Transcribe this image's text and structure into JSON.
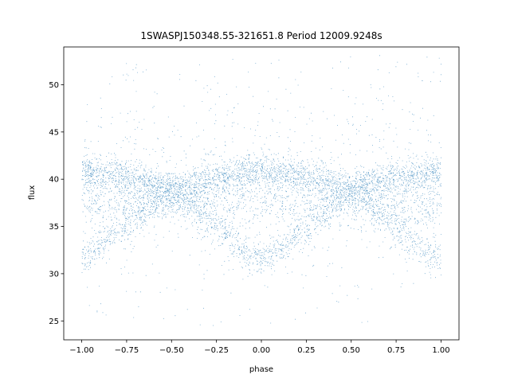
{
  "chart_data": {
    "type": "scatter",
    "title": "1SWASPJ150348.55-321651.8 Period 12009.9248s",
    "xlabel": "phase",
    "ylabel": "flux",
    "xlim": [
      -1.1,
      1.1
    ],
    "ylim": [
      23.0,
      54.0
    ],
    "x_ticks": [
      -1.0,
      -0.75,
      -0.5,
      -0.25,
      0.0,
      0.25,
      0.5,
      0.75,
      1.0
    ],
    "x_tick_labels": [
      "−1.00",
      "−0.75",
      "−0.50",
      "−0.25",
      "0.00",
      "0.25",
      "0.50",
      "0.75",
      "1.00"
    ],
    "y_ticks": [
      25,
      30,
      35,
      40,
      45,
      50
    ],
    "y_tick_labels": [
      "25",
      "30",
      "35",
      "40",
      "45",
      "50"
    ],
    "grid": false,
    "marker_color": "#1f77b4",
    "series": [
      {
        "upper_band_phase": [
          -1.0,
          -0.75,
          -0.5,
          -0.25,
          0.0,
          0.25,
          0.5,
          0.75,
          1.0
        ],
        "upper_band_flux": [
          40.8,
          40.3,
          39.0,
          40.1,
          40.8,
          40.3,
          39.0,
          40.1,
          40.8
        ],
        "lower_band_phase": [
          -1.0,
          -0.9,
          -0.75,
          -0.6,
          -0.5,
          -0.4,
          -0.25,
          -0.1,
          0.0,
          0.1,
          0.25,
          0.4,
          0.5,
          0.6,
          0.75,
          0.9,
          1.0
        ],
        "lower_band_flux": [
          31.5,
          33.0,
          35.5,
          37.5,
          38.5,
          37.5,
          35.0,
          32.5,
          31.5,
          32.5,
          35.0,
          37.5,
          38.5,
          37.5,
          35.0,
          32.5,
          31.5
        ],
        "middle_band_flux": 37.5,
        "outlier_flux_range": [
          24.5,
          53.0
        ]
      }
    ]
  }
}
